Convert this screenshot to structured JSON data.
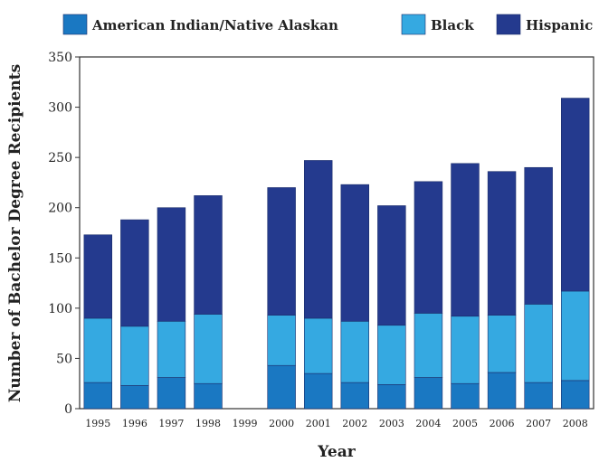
{
  "chart_data": {
    "type": "bar",
    "stacked": true,
    "title": "",
    "xlabel": "Year",
    "ylabel": "Number of Bachelor Degree Recipients",
    "ylim": [
      0,
      350
    ],
    "yticks": [
      0,
      50,
      100,
      150,
      200,
      250,
      300,
      350
    ],
    "grid": false,
    "legend_position": "top",
    "categories": [
      "1995",
      "1996",
      "1997",
      "1998",
      "1999",
      "2000",
      "2001",
      "2002",
      "2003",
      "2004",
      "2005",
      "2006",
      "2007",
      "2008"
    ],
    "series": [
      {
        "name": "American Indian/Native Alaskan",
        "color": "#1a78c2",
        "values": [
          26,
          23,
          31,
          25,
          0,
          43,
          35,
          26,
          24,
          31,
          25,
          36,
          26,
          28
        ]
      },
      {
        "name": "Black",
        "color": "#35a9e1",
        "values": [
          64,
          59,
          56,
          69,
          0,
          50,
          55,
          61,
          59,
          64,
          67,
          57,
          78,
          89
        ]
      },
      {
        "name": "Hispanic",
        "color": "#243a8e",
        "values": [
          83,
          106,
          113,
          118,
          0,
          127,
          157,
          136,
          119,
          131,
          152,
          143,
          136,
          192
        ]
      }
    ]
  }
}
